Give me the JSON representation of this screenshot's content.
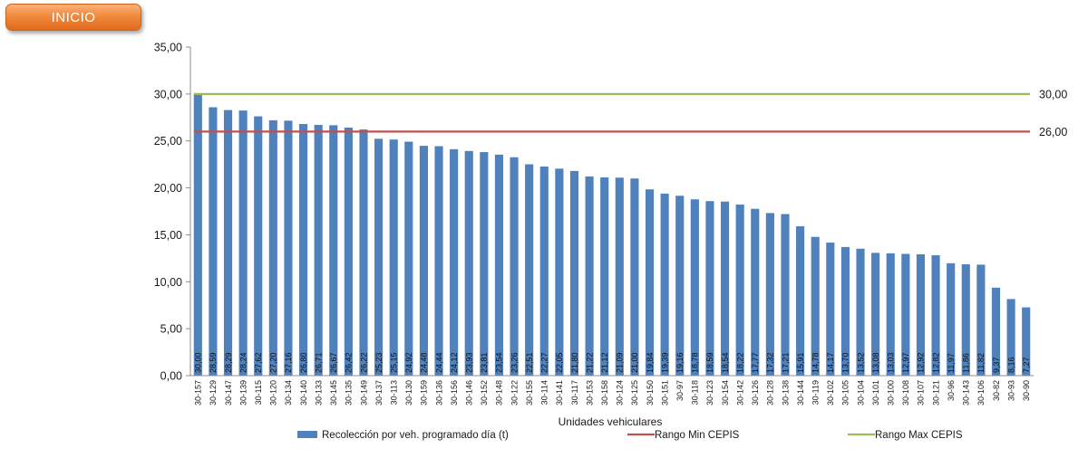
{
  "inicio_label": "INICIO",
  "chart_data": {
    "type": "bar",
    "xlabel": "Unidades vehiculares",
    "ylabel": "",
    "ylim": [
      0,
      35
    ],
    "yticks": [
      "0,00",
      "5,00",
      "10,00",
      "15,00",
      "20,00",
      "25,00",
      "30,00",
      "35,00"
    ],
    "grid": false,
    "legend_position": "bottom",
    "categories": [
      "30-157",
      "30-129",
      "30-147",
      "30-139",
      "30-115",
      "30-120",
      "30-134",
      "30-140",
      "30-133",
      "30-145",
      "30-135",
      "30-149",
      "30-137",
      "30-113",
      "30-130",
      "30-159",
      "30-136",
      "30-156",
      "30-146",
      "30-152",
      "30-148",
      "30-122",
      "30-155",
      "30-114",
      "30-141",
      "30-117",
      "30-153",
      "30-158",
      "30-124",
      "30-125",
      "30-150",
      "30-151",
      "30-97",
      "30-118",
      "30-123",
      "30-154",
      "30-142",
      "30-126",
      "30-128",
      "30-138",
      "30-144",
      "30-119",
      "30-102",
      "30-105",
      "30-104",
      "30-101",
      "30-100",
      "30-108",
      "30-107",
      "30-121",
      "30-96",
      "30-143",
      "30-106",
      "30-82",
      "30-93",
      "30-90"
    ],
    "series": [
      {
        "name": "Recolección por veh. programado día (t)",
        "color": "#4f81bd",
        "values": [
          30.0,
          28.59,
          28.29,
          28.24,
          27.62,
          27.2,
          27.16,
          26.8,
          26.71,
          26.67,
          26.42,
          26.22,
          25.23,
          25.15,
          24.92,
          24.48,
          24.44,
          24.12,
          23.93,
          23.81,
          23.54,
          23.26,
          22.51,
          22.27,
          22.05,
          21.8,
          21.22,
          21.12,
          21.09,
          21.0,
          19.84,
          19.39,
          19.16,
          18.78,
          18.59,
          18.54,
          18.22,
          17.77,
          17.32,
          17.21,
          15.91,
          14.78,
          14.17,
          13.7,
          13.52,
          13.08,
          13.03,
          12.97,
          12.92,
          12.82,
          11.97,
          11.86,
          11.82,
          9.37,
          8.16,
          7.27
        ],
        "labels": [
          "30,00",
          "28,59",
          "28,29",
          "28,24",
          "27,62",
          "27,20",
          "27,16",
          "26,80",
          "26,71",
          "26,67",
          "26,42",
          "26,22",
          "25,23",
          "25,15",
          "24,92",
          "24,48",
          "24,44",
          "24,12",
          "23,93",
          "23,81",
          "23,54",
          "23,26",
          "22,51",
          "22,27",
          "22,05",
          "21,80",
          "21,22",
          "21,12",
          "21,09",
          "21,00",
          "19,84",
          "19,39",
          "19,16",
          "18,78",
          "18,59",
          "18,54",
          "18,22",
          "17,77",
          "17,32",
          "17,21",
          "15,91",
          "14,78",
          "14,17",
          "13,70",
          "13,52",
          "13,08",
          "13,03",
          "12,97",
          "12,92",
          "12,82",
          "11,97",
          "11,86",
          "11,82",
          "9,37",
          "8,16",
          "7,27"
        ]
      }
    ],
    "reference_lines": [
      {
        "name": "Rango Min CEPIS",
        "value": 26.0,
        "label": "26,00",
        "color": "#c0504d"
      },
      {
        "name": "Rango Max CEPIS",
        "value": 30.0,
        "label": "30,00",
        "color": "#9bbb59"
      }
    ]
  }
}
